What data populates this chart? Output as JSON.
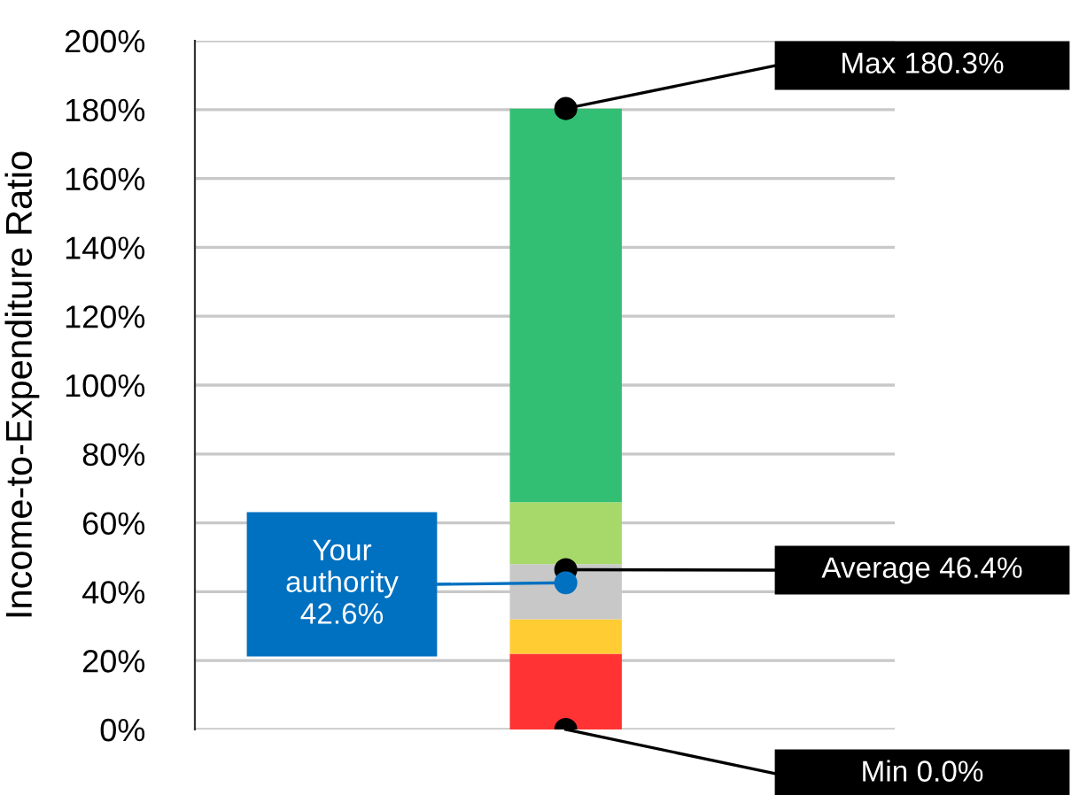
{
  "chart_data": {
    "type": "bar",
    "stacked": true,
    "categories": [
      null
    ],
    "ylabel": "Income-to-Expenditure Ratio",
    "ylim": [
      0,
      200
    ],
    "yticks": [
      {
        "value": 0,
        "label": "0%"
      },
      {
        "value": 20,
        "label": "20%"
      },
      {
        "value": 40,
        "label": "40%"
      },
      {
        "value": 60,
        "label": "60%"
      },
      {
        "value": 80,
        "label": "80%"
      },
      {
        "value": 100,
        "label": "100%"
      },
      {
        "value": 120,
        "label": "120%"
      },
      {
        "value": 140,
        "label": "140%"
      },
      {
        "value": 160,
        "label": "160%"
      },
      {
        "value": 180,
        "label": "180%"
      },
      {
        "value": 200,
        "label": "200%"
      }
    ],
    "grid": "y",
    "legend": false,
    "series": [
      {
        "color": "#ff3333",
        "values": [
          22
        ]
      },
      {
        "color": "#ffcc33",
        "values": [
          10
        ]
      },
      {
        "color": "#c8c8c8",
        "values": [
          16
        ]
      },
      {
        "color": "#a6d96a",
        "values": [
          18
        ]
      },
      {
        "color": "#33bf73",
        "values": [
          114.3
        ]
      },
      {
        "type": "scatter",
        "color": "#000000",
        "values": [
          180.3
        ]
      },
      {
        "type": "scatter",
        "color": "#000000",
        "values": [
          46.4
        ]
      },
      {
        "type": "scatter",
        "color": "#000000",
        "values": [
          0.0
        ]
      },
      {
        "type": "scatter",
        "color": "#0070c0",
        "values": [
          42.6
        ]
      }
    ],
    "annotations": [
      "Max 180.3%",
      "Average 46.4%",
      "Min 0.0%",
      "Your\nauthority\n42.6%"
    ]
  }
}
